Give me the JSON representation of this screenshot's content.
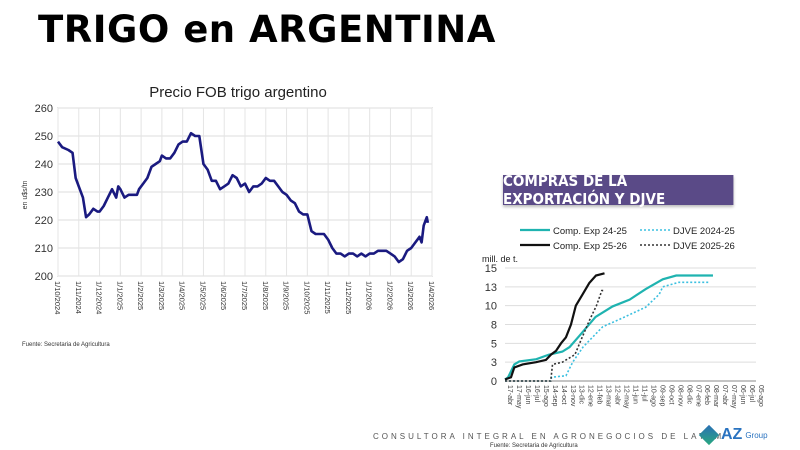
{
  "title": "TRIGO en ARGENTINA",
  "source_left": "Fuente: Secretaria de Agricultura",
  "banner": "COMPRAS DE LA EXPORTACIÓN Y DJVE",
  "footer": {
    "consultora": "CONSULTORA INTEGRAL EN AGRONEGOCIOS DE LATAM",
    "source": "Fuente: Secretaria de Agricultura",
    "logo": "AZ",
    "logo_sub": "Group"
  },
  "chart_data": [
    {
      "type": "line",
      "title": "Precio FOB trigo argentino",
      "ylabel": "en u$s/tn",
      "ylim": [
        200,
        260
      ],
      "yticks": [
        200,
        210,
        220,
        230,
        240,
        250,
        260
      ],
      "xticks": [
        "1/10/2024",
        "1/11/2024",
        "1/12/2024",
        "1/1/2025",
        "1/2/2025",
        "1/3/2025",
        "1/4/2025",
        "1/5/2025",
        "1/6/2025",
        "1/7/2025",
        "1/8/2025",
        "1/9/2025",
        "1/10/2025",
        "1/11/2025",
        "1/12/2025",
        "1/1/2026",
        "1/2/2026",
        "1/3/2026",
        "1/4/2026"
      ],
      "color": "#1a1a80",
      "series": [
        {
          "name": "Precio FOB",
          "x_months_from_oct2024": [
            0,
            0.2,
            0.5,
            0.7,
            0.85,
            1.0,
            1.2,
            1.35,
            1.5,
            1.7,
            1.9,
            2.0,
            2.2,
            2.4,
            2.6,
            2.8,
            2.9,
            3.0,
            3.2,
            3.4,
            3.6,
            3.8,
            3.9,
            4.1,
            4.3,
            4.5,
            4.7,
            4.9,
            5.0,
            5.2,
            5.4,
            5.6,
            5.8,
            6.0,
            6.2,
            6.4,
            6.6,
            6.8,
            7.0,
            7.2,
            7.4,
            7.6,
            7.8,
            8.0,
            8.2,
            8.4,
            8.6,
            8.8,
            9.0,
            9.2,
            9.4,
            9.6,
            9.8,
            10.0,
            10.2,
            10.4,
            10.6,
            10.8,
            11.0,
            11.2,
            11.4,
            11.6,
            11.8,
            12.0,
            12.2,
            12.4,
            12.6,
            12.8,
            13.0,
            13.2,
            13.4,
            13.6,
            13.8,
            14.0,
            14.2,
            14.4,
            14.6,
            14.8,
            15.0,
            15.2,
            15.4,
            15.6,
            15.8,
            16.0,
            16.2,
            16.4,
            16.6,
            16.8,
            17.0,
            17.2,
            17.4,
            17.5,
            17.6,
            17.7,
            17.75,
            17.8
          ],
          "values": [
            248,
            246,
            245,
            244,
            235,
            232,
            228,
            221,
            222,
            224,
            223,
            223,
            225,
            228,
            231,
            228,
            232,
            231,
            228,
            229,
            229,
            229,
            231,
            233,
            235,
            239,
            240,
            241,
            243,
            242,
            242,
            244,
            247,
            248,
            248,
            251,
            250,
            250,
            240,
            238,
            234,
            234,
            231,
            232,
            233,
            236,
            235,
            232,
            233,
            230,
            232,
            232,
            233,
            235,
            234,
            234,
            232,
            230,
            229,
            227,
            226,
            223,
            222,
            222,
            216,
            215,
            215,
            215,
            213,
            210,
            208,
            208,
            207,
            208,
            208,
            207,
            208,
            207,
            208,
            208,
            209,
            209,
            209,
            208,
            207,
            205,
            206,
            209,
            210,
            212,
            214,
            212,
            218,
            220,
            221,
            219
          ]
        }
      ]
    },
    {
      "type": "line",
      "ylabel": "mill. de t.",
      "ylim": [
        0,
        15
      ],
      "yticks": [
        0,
        2.5,
        5,
        7.5,
        10,
        12.5,
        15
      ],
      "ytick_labels": [
        "0",
        "3",
        "5",
        "8",
        "10",
        "13",
        "15"
      ],
      "xticks": [
        "17-abr",
        "17-may",
        "16-jun",
        "16-jul",
        "15-ago",
        "14-sep",
        "14-oct",
        "13-nov",
        "13-dic",
        "12-ene",
        "11-feb",
        "13-mar",
        "12-abr",
        "12-may",
        "11-jun",
        "11-jul",
        "10-ago",
        "09-sep",
        "09-oct",
        "08-nov",
        "08-dic",
        "07-ene",
        "06-feb",
        "08-mar",
        "07-abr",
        "07-may",
        "06-jun",
        "06-jul",
        "05-ago"
      ],
      "series": [
        {
          "name": "Comp. Exp 24-25",
          "color": "#1fb3b0",
          "dash": false,
          "x": [
            0,
            0.35,
            1.04,
            1.6,
            3.5,
            4.9,
            6.4,
            7.2,
            8.3,
            10.1,
            12.0,
            13.9,
            15.7,
            17.6,
            19.1,
            23.2
          ],
          "values": [
            0.2,
            0.5,
            2.2,
            2.6,
            2.9,
            3.5,
            3.9,
            4.5,
            6.0,
            8.5,
            9.9,
            10.8,
            12.2,
            13.5,
            14.0,
            14.0
          ]
        },
        {
          "name": "DJVE 2024-25",
          "color": "#3cc0e0",
          "dash": true,
          "x": [
            0,
            5.1,
            5.2,
            6.8,
            7.55,
            8.7,
            10.9,
            12.8,
            15.7,
            17.2,
            17.6,
            19.4,
            22.8
          ],
          "values": [
            0,
            0,
            0.5,
            0.7,
            2.5,
            4.5,
            7.2,
            8.2,
            9.8,
            11.5,
            12.5,
            13.1,
            13.1
          ]
        },
        {
          "name": "Comp. Exp 25-26",
          "color": "#111111",
          "dash": false,
          "x": [
            0,
            0.67,
            1.04,
            1.97,
            3.46,
            4.57,
            5.13,
            5.69,
            6.25,
            6.8,
            7.36,
            7.9,
            8.66,
            9.4,
            10.15,
            11.1
          ],
          "values": [
            0.2,
            0.5,
            1.8,
            2.2,
            2.5,
            2.8,
            3.5,
            4,
            5,
            5.8,
            7.5,
            10,
            11.5,
            13,
            14,
            14.3
          ]
        },
        {
          "name": "DJVE 2025-26",
          "color": "#333333",
          "dash": true,
          "x": [
            0,
            5.1,
            5.3,
            6.4,
            7.8,
            8.5,
            9.4,
            10.2,
            10.8,
            11.1
          ],
          "values": [
            0,
            0,
            2.2,
            2.5,
            3.5,
            5.5,
            8,
            10,
            12,
            12
          ]
        }
      ]
    }
  ]
}
